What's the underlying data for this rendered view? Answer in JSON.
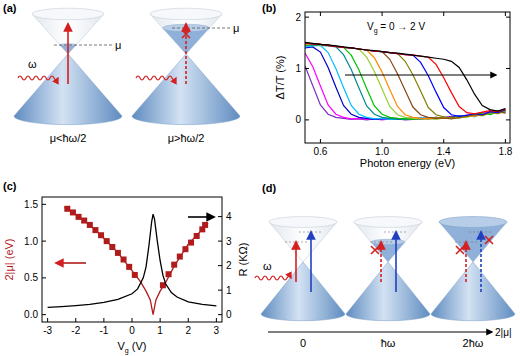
{
  "chart_data": [
    {
      "type": "line",
      "title": "(b)",
      "xlabel": "Photon energy (eV)",
      "ylabel": "ΔT/T (%)",
      "annotation": [
        "V",
        "g",
        " = 0 → 2 V"
      ],
      "x": [
        0.5,
        0.55,
        0.6,
        0.65,
        0.7,
        0.75,
        0.8,
        0.85,
        0.9,
        0.95,
        1.0,
        1.05,
        1.1,
        1.15,
        1.2,
        1.25,
        1.3,
        1.35,
        1.4,
        1.45,
        1.5,
        1.55,
        1.6,
        1.65,
        1.7,
        1.75,
        1.8
      ],
      "xlim": [
        0.5,
        1.83
      ],
      "xticks": [
        0.6,
        {
          "value": 1,
          "label": "1.0"
        },
        1.4,
        1.8
      ],
      "ylim": [
        -0.45,
        2.1
      ],
      "yticks": [
        0,
        1,
        2
      ],
      "series": [
        {
          "color": "#7b2fbe",
          "values": [
            1.05,
            0.67,
            0.29,
            0.11,
            0.05,
            0.03,
            0.01,
            0.02,
            0.0,
            0.02,
            0.01,
            0.03,
            0.02,
            0.0,
            0.01,
            0.02,
            0.04,
            0.03,
            0.05,
            0.06,
            0.04,
            0.08,
            0.1,
            0.14,
            0.12,
            0.18,
            0.15
          ]
        },
        {
          "color": "#ff00ff",
          "values": [
            1.3,
            1.04,
            0.66,
            0.29,
            0.11,
            0.05,
            0.02,
            0.03,
            0.01,
            0.02,
            0.0,
            0.02,
            0.03,
            0.01,
            0.02,
            0.04,
            0.02,
            0.05,
            0.04,
            0.07,
            0.05,
            0.1,
            0.08,
            0.12,
            0.16,
            0.13,
            0.2
          ]
        },
        {
          "color": "#0000cd",
          "values": [
            1.4,
            1.42,
            1.32,
            1.02,
            0.64,
            0.28,
            0.11,
            0.05,
            0.03,
            0.01,
            0.02,
            0.03,
            0.01,
            0.02,
            0.04,
            0.02,
            0.03,
            0.05,
            0.03,
            0.06,
            0.08,
            0.07,
            0.11,
            0.09,
            0.15,
            0.17,
            0.14
          ]
        },
        {
          "color": "#00bfff",
          "values": [
            1.42,
            1.44,
            1.45,
            1.31,
            1.0,
            0.63,
            0.28,
            0.11,
            0.05,
            0.02,
            0.03,
            0.01,
            0.02,
            0.03,
            0.02,
            0.04,
            0.03,
            0.02,
            0.05,
            0.04,
            0.07,
            0.09,
            0.06,
            0.13,
            0.11,
            0.16,
            0.19
          ]
        },
        {
          "color": "#008b8b",
          "values": [
            1.45,
            1.46,
            1.45,
            1.44,
            1.42,
            1.27,
            0.98,
            0.62,
            0.27,
            0.11,
            0.05,
            0.03,
            0.02,
            0.01,
            0.03,
            0.02,
            0.04,
            0.03,
            0.05,
            0.03,
            0.06,
            0.08,
            0.12,
            0.1,
            0.14,
            0.12,
            0.17
          ]
        },
        {
          "color": "#00c000",
          "values": [
            1.46,
            1.47,
            1.46,
            1.45,
            1.43,
            1.41,
            1.26,
            0.97,
            0.61,
            0.27,
            0.11,
            0.05,
            0.03,
            0.02,
            0.01,
            0.03,
            0.02,
            0.04,
            0.03,
            0.05,
            0.04,
            0.07,
            0.09,
            0.13,
            0.1,
            0.15,
            0.18
          ]
        },
        {
          "color": "#9acd32",
          "values": [
            1.47,
            1.47,
            1.46,
            1.45,
            1.43,
            1.41,
            1.4,
            1.38,
            1.22,
            0.94,
            0.6,
            0.26,
            0.1,
            0.05,
            0.03,
            0.02,
            0.03,
            0.01,
            0.04,
            0.03,
            0.06,
            0.05,
            0.1,
            0.08,
            0.13,
            0.17,
            0.14
          ]
        },
        {
          "color": "#ff8c00",
          "values": [
            1.48,
            1.48,
            1.47,
            1.45,
            1.43,
            1.41,
            1.4,
            1.38,
            1.36,
            1.21,
            0.93,
            0.59,
            0.26,
            0.1,
            0.05,
            0.03,
            0.02,
            0.04,
            0.03,
            0.05,
            0.04,
            0.08,
            0.07,
            0.11,
            0.15,
            0.12,
            0.19
          ]
        },
        {
          "color": "#8b4513",
          "values": [
            1.49,
            1.48,
            1.47,
            1.45,
            1.43,
            1.41,
            1.4,
            1.38,
            1.36,
            1.34,
            1.33,
            1.18,
            0.9,
            0.57,
            0.25,
            0.1,
            0.05,
            0.03,
            0.04,
            0.02,
            0.05,
            0.07,
            0.1,
            0.09,
            0.14,
            0.16,
            0.13
          ]
        },
        {
          "color": "#808000",
          "values": [
            1.5,
            1.48,
            1.47,
            1.45,
            1.43,
            1.41,
            1.4,
            1.38,
            1.36,
            1.34,
            1.33,
            1.31,
            1.29,
            1.14,
            0.88,
            0.56,
            0.24,
            0.1,
            0.06,
            0.04,
            0.06,
            0.08,
            0.11,
            0.09,
            0.15,
            0.13,
            0.18
          ]
        },
        {
          "color": "#0000ff",
          "values": [
            1.5,
            1.48,
            1.47,
            1.45,
            1.43,
            1.41,
            1.4,
            1.38,
            1.36,
            1.34,
            1.33,
            1.31,
            1.29,
            1.27,
            1.26,
            1.12,
            0.86,
            0.54,
            0.24,
            0.1,
            0.07,
            0.09,
            0.12,
            0.1,
            0.16,
            0.14,
            0.2
          ]
        },
        {
          "color": "#ff0000",
          "values": [
            1.5,
            1.48,
            1.47,
            1.45,
            1.43,
            1.41,
            1.4,
            1.38,
            1.36,
            1.34,
            1.33,
            1.31,
            1.29,
            1.27,
            1.26,
            1.24,
            1.22,
            1.08,
            0.82,
            0.53,
            0.26,
            0.14,
            0.12,
            0.15,
            0.18,
            0.16,
            0.21
          ]
        },
        {
          "color": "#000000",
          "values": [
            1.51,
            1.49,
            1.47,
            1.46,
            1.44,
            1.42,
            1.4,
            1.38,
            1.36,
            1.35,
            1.33,
            1.31,
            1.3,
            1.28,
            1.26,
            1.24,
            1.22,
            1.2,
            1.18,
            1.14,
            1.02,
            0.78,
            0.5,
            0.28,
            0.2,
            0.17,
            0.22
          ]
        }
      ]
    },
    {
      "type": "line",
      "title": "(c)",
      "xlabel": [
        "V",
        "g",
        " (V)"
      ],
      "ylabel": "2|μ| (eV)",
      "y2label": "R (KΩ)",
      "xlim": [
        -3.2,
        3.2
      ],
      "xticks": [
        -3,
        -2,
        -1,
        0,
        1,
        2,
        3
      ],
      "ylim": [
        -0.1,
        1.6
      ],
      "yticks": [
        {
          "value": 0,
          "label": "0.0"
        },
        0.5,
        {
          "value": 1,
          "label": "1.0"
        },
        1.5
      ],
      "y2lim": [
        -0.3,
        4.8
      ],
      "y2ticks": [
        0,
        1,
        2,
        3,
        4
      ],
      "series": [
        {
          "type": "scatter",
          "marker": "square",
          "color": "#b01c1c",
          "x": [
            -2.3,
            -2.1,
            -1.9,
            -1.7,
            -1.5,
            -1.3,
            -1.1,
            -0.9,
            -0.7,
            -0.5,
            -0.3,
            -0.1,
            0.1,
            1.1,
            1.3,
            1.5,
            1.7,
            1.9,
            2.1,
            2.3,
            2.5,
            2.6
          ],
          "values": [
            1.44,
            1.39,
            1.33,
            1.28,
            1.22,
            1.15,
            1.08,
            1.0,
            0.92,
            0.84,
            0.75,
            0.65,
            0.54,
            0.4,
            0.55,
            0.68,
            0.79,
            0.89,
            0.98,
            1.07,
            1.16,
            1.22
          ]
        },
        {
          "type": "line",
          "color": "#b01c1c",
          "x": [
            -2.4,
            -2,
            -1.5,
            -1,
            -0.5,
            0,
            0.3,
            0.5,
            0.65,
            0.75,
            0.85,
            1,
            1.2,
            1.5,
            2,
            2.5,
            2.7
          ],
          "values": [
            1.46,
            1.36,
            1.22,
            1.04,
            0.84,
            0.6,
            0.45,
            0.32,
            0.2,
            0.0,
            0.2,
            0.32,
            0.44,
            0.66,
            0.96,
            1.16,
            1.25
          ]
        },
        {
          "type": "line",
          "axis": "y2",
          "color": "#000000",
          "x": [
            -3,
            -2.5,
            -2,
            -1.5,
            -1,
            -0.5,
            0,
            0.2,
            0.4,
            0.5,
            0.6,
            0.7,
            0.75,
            0.8,
            0.9,
            1.0,
            1.1,
            1.2,
            1.4,
            1.6,
            2,
            2.5,
            3
          ],
          "values": [
            0.3,
            0.33,
            0.37,
            0.42,
            0.5,
            0.62,
            0.85,
            1.05,
            1.5,
            1.95,
            2.8,
            3.8,
            4.1,
            3.9,
            3.0,
            2.2,
            1.6,
            1.25,
            0.9,
            0.72,
            0.52,
            0.42,
            0.36
          ]
        }
      ]
    }
  ],
  "diagrams": {
    "a": {
      "label": "(a)",
      "omega": "ω",
      "mu": [
        "μ",
        "μ"
      ],
      "captions": [
        "μ<ħω/2",
        "μ>ħω/2"
      ]
    },
    "d": {
      "label": "(d)",
      "omega": "ω",
      "axis_ticks": [
        "0",
        "ħω",
        "2ħω"
      ],
      "axis_label": "2|μ|"
    }
  }
}
